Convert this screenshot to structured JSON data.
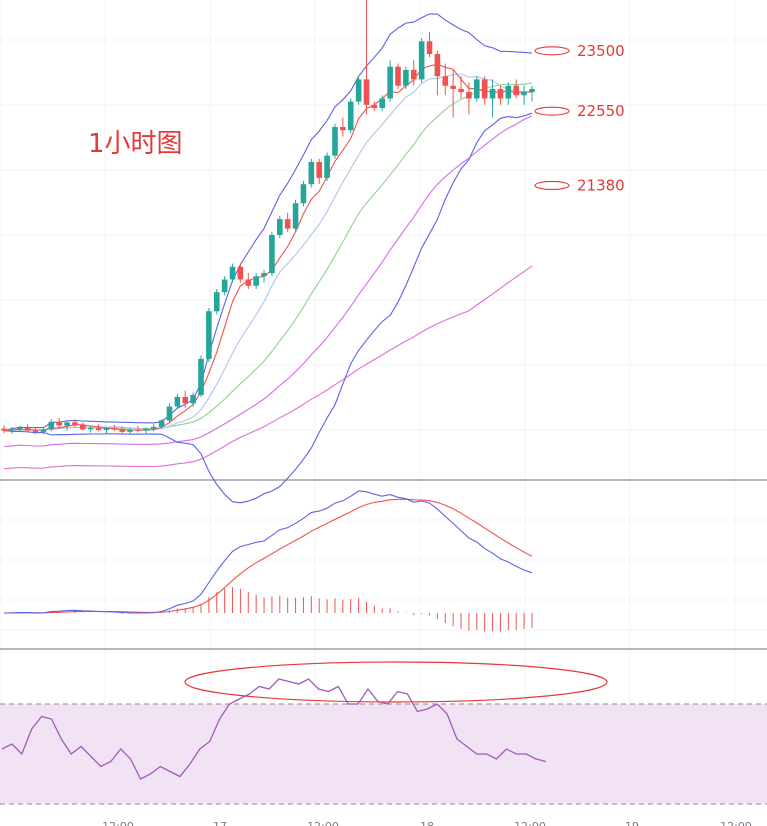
{
  "annotation_title": "1小时图",
  "price_levels": [
    {
      "label": "23500",
      "value": 23500
    },
    {
      "label": "22550",
      "value": 22550
    },
    {
      "label": "21380",
      "value": 21380
    }
  ],
  "colors": {
    "up": "#26a69a",
    "down": "#ef5350",
    "annotation": "#e53935",
    "bb": "#5b63e6",
    "ma_fast": "#ef5350",
    "ma_light": "#b0c4ee",
    "ma_green": "#8fd18f",
    "ma_violet": "#d66ce8",
    "ma_long": "#e070d0",
    "macd_dif": "#5b63e6",
    "macd_dea": "#ef5350",
    "rsi": "#a45ab8",
    "rsi_band": "#f1e2f4",
    "grid": "#f0f3fa"
  },
  "chart_data": [
    {
      "type": "candlestick",
      "panel": "price",
      "title": "",
      "ylim": [
        16900,
        24300
      ],
      "x_ticks": [
        "",
        "12:00",
        "17",
        "12:00",
        "18",
        "12:00",
        "19",
        "12:00"
      ],
      "candles": [
        [
          17550,
          17600,
          17480,
          17520
        ],
        [
          17520,
          17580,
          17470,
          17540
        ],
        [
          17540,
          17600,
          17500,
          17560
        ],
        [
          17560,
          17620,
          17510,
          17520
        ],
        [
          17520,
          17560,
          17470,
          17500
        ],
        [
          17500,
          17560,
          17460,
          17540
        ],
        [
          17540,
          17700,
          17510,
          17660
        ],
        [
          17660,
          17720,
          17560,
          17600
        ],
        [
          17600,
          17660,
          17520,
          17650
        ],
        [
          17650,
          17700,
          17580,
          17610
        ],
        [
          17610,
          17650,
          17520,
          17540
        ],
        [
          17540,
          17600,
          17490,
          17560
        ],
        [
          17560,
          17620,
          17510,
          17530
        ],
        [
          17530,
          17580,
          17480,
          17560
        ],
        [
          17560,
          17610,
          17510,
          17540
        ],
        [
          17540,
          17580,
          17480,
          17500
        ],
        [
          17500,
          17560,
          17460,
          17530
        ],
        [
          17530,
          17590,
          17490,
          17520
        ],
        [
          17520,
          17570,
          17480,
          17550
        ],
        [
          17550,
          17620,
          17510,
          17580
        ],
        [
          17580,
          17700,
          17550,
          17680
        ],
        [
          17680,
          17950,
          17650,
          17900
        ],
        [
          17900,
          18100,
          17860,
          18050
        ],
        [
          18050,
          18150,
          17880,
          17950
        ],
        [
          17950,
          18120,
          17900,
          18080
        ],
        [
          18080,
          18700,
          18050,
          18650
        ],
        [
          18650,
          19450,
          18600,
          19400
        ],
        [
          19400,
          19750,
          19350,
          19700
        ],
        [
          19700,
          19950,
          19650,
          19900
        ],
        [
          19900,
          20150,
          19850,
          20100
        ],
        [
          20100,
          20150,
          19850,
          19900
        ],
        [
          19900,
          20000,
          19750,
          19800
        ],
        [
          19800,
          20000,
          19750,
          19950
        ],
        [
          19950,
          20050,
          19850,
          20000
        ],
        [
          20000,
          20650,
          19950,
          20600
        ],
        [
          20600,
          20900,
          20550,
          20850
        ],
        [
          20850,
          20950,
          20650,
          20700
        ],
        [
          20700,
          21150,
          20650,
          21100
        ],
        [
          21100,
          21450,
          21050,
          21400
        ],
        [
          21400,
          21800,
          21350,
          21750
        ],
        [
          21750,
          21800,
          21400,
          21500
        ],
        [
          21500,
          21900,
          21450,
          21850
        ],
        [
          21850,
          22350,
          21800,
          22300
        ],
        [
          22300,
          22450,
          22150,
          22250
        ],
        [
          22250,
          22750,
          22200,
          22700
        ],
        [
          22700,
          23100,
          22650,
          23050
        ],
        [
          23050,
          24450,
          22500,
          22650
        ],
        [
          22650,
          22700,
          22550,
          22600
        ],
        [
          22600,
          22800,
          22550,
          22750
        ],
        [
          22750,
          23350,
          22700,
          23250
        ],
        [
          23250,
          23300,
          22900,
          22950
        ],
        [
          22950,
          23250,
          22900,
          23200
        ],
        [
          23200,
          23350,
          22950,
          23050
        ],
        [
          23050,
          23700,
          23000,
          23650
        ],
        [
          23650,
          23800,
          23400,
          23450
        ],
        [
          23450,
          23500,
          22800,
          23100
        ],
        [
          23100,
          23300,
          22800,
          22950
        ],
        [
          22950,
          23200,
          22450,
          22900
        ],
        [
          22900,
          23100,
          22750,
          22850
        ],
        [
          22850,
          23000,
          22500,
          22750
        ],
        [
          22750,
          23100,
          22700,
          23050
        ],
        [
          23050,
          23100,
          22650,
          22750
        ],
        [
          22750,
          23050,
          22450,
          22900
        ],
        [
          22900,
          22950,
          22650,
          22750
        ],
        [
          22750,
          23000,
          22650,
          22950
        ],
        [
          22950,
          23050,
          22750,
          22800
        ],
        [
          22800,
          22950,
          22650,
          22850
        ],
        [
          22850,
          22950,
          22700,
          22900
        ]
      ]
    },
    {
      "type": "macd",
      "panel": "macd",
      "title": ""
    },
    {
      "type": "line",
      "panel": "rsi",
      "title": "",
      "series": [
        {
          "values": [
            52,
            54,
            50,
            60,
            65,
            64,
            56,
            50,
            53,
            49,
            45,
            47,
            52,
            48,
            40,
            42,
            45,
            43,
            41,
            46,
            52,
            55,
            64,
            70,
            72,
            74,
            77,
            76,
            80,
            79,
            78,
            80,
            76,
            75,
            77,
            70,
            70,
            76,
            71,
            70,
            75,
            74,
            67,
            68,
            70,
            66,
            56,
            53,
            50,
            50,
            48,
            52,
            50,
            50,
            48,
            47
          ]
        }
      ],
      "band": [
        30,
        70
      ]
    }
  ]
}
